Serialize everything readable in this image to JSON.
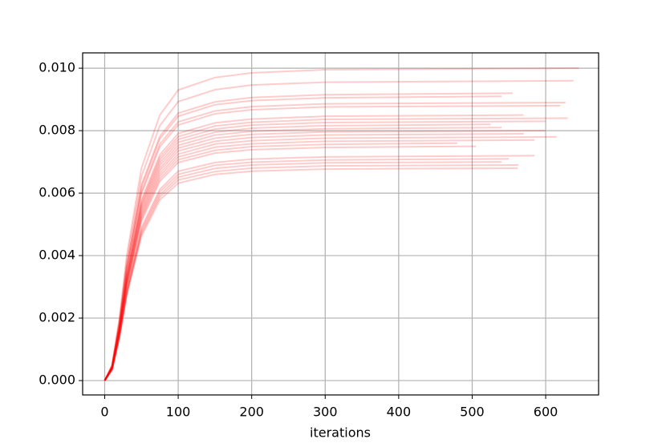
{
  "chart_data": {
    "type": "line",
    "xlabel": "iterations",
    "color": "#ff0000",
    "opacity": 0.2,
    "grid": true,
    "xlim": [
      -30,
      672
    ],
    "ylim": [
      -0.00046,
      0.01049
    ],
    "xticks": [
      0,
      100,
      200,
      300,
      400,
      500,
      600
    ],
    "yticks": [
      {
        "value": 0,
        "label": "0.000"
      },
      {
        "value": 0.002,
        "label": "0.002"
      },
      {
        "value": 0.004,
        "label": "0.004"
      },
      {
        "value": 0.006,
        "label": "0.006"
      },
      {
        "value": 0.008,
        "label": "0.008"
      },
      {
        "value": 0.01,
        "label": "0.010"
      }
    ],
    "series": [
      {
        "x": [
          0,
          10,
          20,
          30,
          50,
          75,
          100,
          150,
          200,
          300,
          645
        ],
        "values": [
          0,
          0.0005,
          0.002,
          0.004,
          0.0068,
          0.0085,
          0.0093,
          0.0097,
          0.00985,
          0.00995,
          0.01
        ]
      },
      {
        "x": [
          0,
          10,
          20,
          30,
          50,
          75,
          100,
          150,
          200,
          300,
          638
        ],
        "values": [
          0,
          0.00048,
          0.00192,
          0.00384,
          0.00653,
          0.00816,
          0.00893,
          0.00931,
          0.00946,
          0.00955,
          0.0096
        ]
      },
      {
        "x": [
          0,
          10,
          20,
          30,
          50,
          75,
          100,
          150,
          200,
          300,
          555
        ],
        "values": [
          0,
          0.00046,
          0.00184,
          0.00368,
          0.00626,
          0.00782,
          0.00856,
          0.00892,
          0.00906,
          0.00915,
          0.0092
        ]
      },
      {
        "x": [
          0,
          10,
          20,
          30,
          50,
          75,
          100,
          150,
          200,
          300,
          540
        ],
        "values": [
          0,
          0.00046,
          0.00182,
          0.00364,
          0.00619,
          0.00774,
          0.00846,
          0.00883,
          0.00896,
          0.00905,
          0.0091
        ]
      },
      {
        "x": [
          0,
          10,
          20,
          30,
          50,
          75,
          100,
          150,
          200,
          300,
          627
        ],
        "values": [
          0,
          0.00045,
          0.00178,
          0.00356,
          0.00605,
          0.00757,
          0.00828,
          0.00863,
          0.00877,
          0.00886,
          0.0089
        ]
      },
      {
        "x": [
          0,
          10,
          20,
          30,
          50,
          75,
          100,
          150,
          200,
          300,
          620
        ],
        "values": [
          0,
          0.00044,
          0.00176,
          0.00352,
          0.00598,
          0.00748,
          0.00818,
          0.00854,
          0.00867,
          0.00876,
          0.0088
        ]
      },
      {
        "x": [
          0,
          10,
          20,
          30,
          50,
          75,
          100,
          150,
          200,
          300,
          570
        ],
        "values": [
          0,
          0.00043,
          0.0017,
          0.0034,
          0.00578,
          0.00723,
          0.00791,
          0.00825,
          0.00837,
          0.00846,
          0.0085
        ]
      },
      {
        "x": [
          0,
          10,
          20,
          30,
          50,
          75,
          100,
          150,
          200,
          300,
          630
        ],
        "values": [
          0,
          0.00042,
          0.00168,
          0.00336,
          0.00571,
          0.00714,
          0.00781,
          0.00815,
          0.00827,
          0.00836,
          0.0084
        ]
      },
      {
        "x": [
          0,
          10,
          20,
          30,
          50,
          75,
          100,
          150,
          200,
          300,
          600
        ],
        "values": [
          0,
          0.00042,
          0.00166,
          0.00332,
          0.00564,
          0.00706,
          0.00772,
          0.00805,
          0.00818,
          0.00826,
          0.0083
        ]
      },
      {
        "x": [
          0,
          10,
          20,
          30,
          50,
          75,
          100,
          150,
          200,
          300,
          525
        ],
        "values": [
          0,
          0.00041,
          0.00164,
          0.00328,
          0.00558,
          0.00697,
          0.00763,
          0.00795,
          0.00808,
          0.00816,
          0.0082
        ]
      },
      {
        "x": [
          0,
          10,
          20,
          30,
          50,
          75,
          100,
          150,
          200,
          300,
          540
        ],
        "values": [
          0,
          0.00041,
          0.00162,
          0.00324,
          0.00551,
          0.00689,
          0.00753,
          0.00786,
          0.00798,
          0.00806,
          0.0081
        ]
      },
      {
        "x": [
          0,
          10,
          20,
          30,
          50,
          75,
          100,
          150,
          200,
          300,
          600
        ],
        "values": [
          0,
          0.0004,
          0.0016,
          0.0032,
          0.00544,
          0.0068,
          0.00744,
          0.00776,
          0.00788,
          0.00796,
          0.008
        ]
      },
      {
        "x": [
          0,
          10,
          20,
          30,
          50,
          75,
          100,
          150,
          200,
          300,
          570
        ],
        "values": [
          0,
          0.0004,
          0.00158,
          0.00316,
          0.00537,
          0.00672,
          0.00735,
          0.00766,
          0.00778,
          0.00786,
          0.0079
        ]
      },
      {
        "x": [
          0,
          10,
          20,
          30,
          50,
          75,
          100,
          150,
          200,
          300,
          615
        ],
        "values": [
          0,
          0.00039,
          0.00156,
          0.00312,
          0.0053,
          0.00663,
          0.00725,
          0.00757,
          0.00768,
          0.00776,
          0.0078
        ]
      },
      {
        "x": [
          0,
          10,
          20,
          30,
          50,
          75,
          100,
          150,
          200,
          300,
          585
        ],
        "values": [
          0,
          0.00039,
          0.00154,
          0.00308,
          0.00524,
          0.00655,
          0.00716,
          0.00747,
          0.00758,
          0.00766,
          0.0077
        ]
      },
      {
        "x": [
          0,
          10,
          20,
          30,
          50,
          75,
          100,
          150,
          200,
          300,
          480
        ],
        "values": [
          0,
          0.00038,
          0.00152,
          0.00304,
          0.00517,
          0.00646,
          0.00707,
          0.00737,
          0.00749,
          0.00756,
          0.0076
        ]
      },
      {
        "x": [
          0,
          10,
          20,
          30,
          50,
          75,
          100,
          150,
          200,
          300,
          505
        ],
        "values": [
          0,
          0.00038,
          0.0015,
          0.003,
          0.0051,
          0.00638,
          0.00698,
          0.00728,
          0.00739,
          0.00746,
          0.0075
        ]
      },
      {
        "x": [
          0,
          10,
          20,
          30,
          50,
          75,
          100,
          150,
          200,
          300,
          585
        ],
        "values": [
          0,
          0.00036,
          0.00144,
          0.00288,
          0.0049,
          0.00612,
          0.0067,
          0.00698,
          0.00709,
          0.00716,
          0.0072
        ]
      },
      {
        "x": [
          0,
          10,
          20,
          30,
          50,
          75,
          100,
          150,
          200,
          300,
          550
        ],
        "values": [
          0,
          0.00036,
          0.00142,
          0.00284,
          0.00483,
          0.00604,
          0.0066,
          0.00689,
          0.00699,
          0.00706,
          0.0071
        ]
      },
      {
        "x": [
          0,
          10,
          20,
          30,
          50,
          75,
          100,
          150,
          200,
          300,
          540
        ],
        "values": [
          0,
          0.00035,
          0.0014,
          0.0028,
          0.00476,
          0.00595,
          0.00651,
          0.00679,
          0.0069,
          0.00697,
          0.007
        ]
      },
      {
        "x": [
          0,
          10,
          20,
          30,
          50,
          75,
          100,
          150,
          200,
          300,
          563
        ],
        "values": [
          0,
          0.00035,
          0.00138,
          0.00276,
          0.00469,
          0.00587,
          0.00642,
          0.00669,
          0.0068,
          0.00687,
          0.0069
        ]
      },
      {
        "x": [
          0,
          10,
          20,
          30,
          50,
          75,
          100,
          150,
          200,
          300,
          562
        ],
        "values": [
          0,
          0.00034,
          0.00136,
          0.00272,
          0.00462,
          0.00578,
          0.00632,
          0.0066,
          0.0067,
          0.00677,
          0.0068
        ]
      }
    ]
  }
}
